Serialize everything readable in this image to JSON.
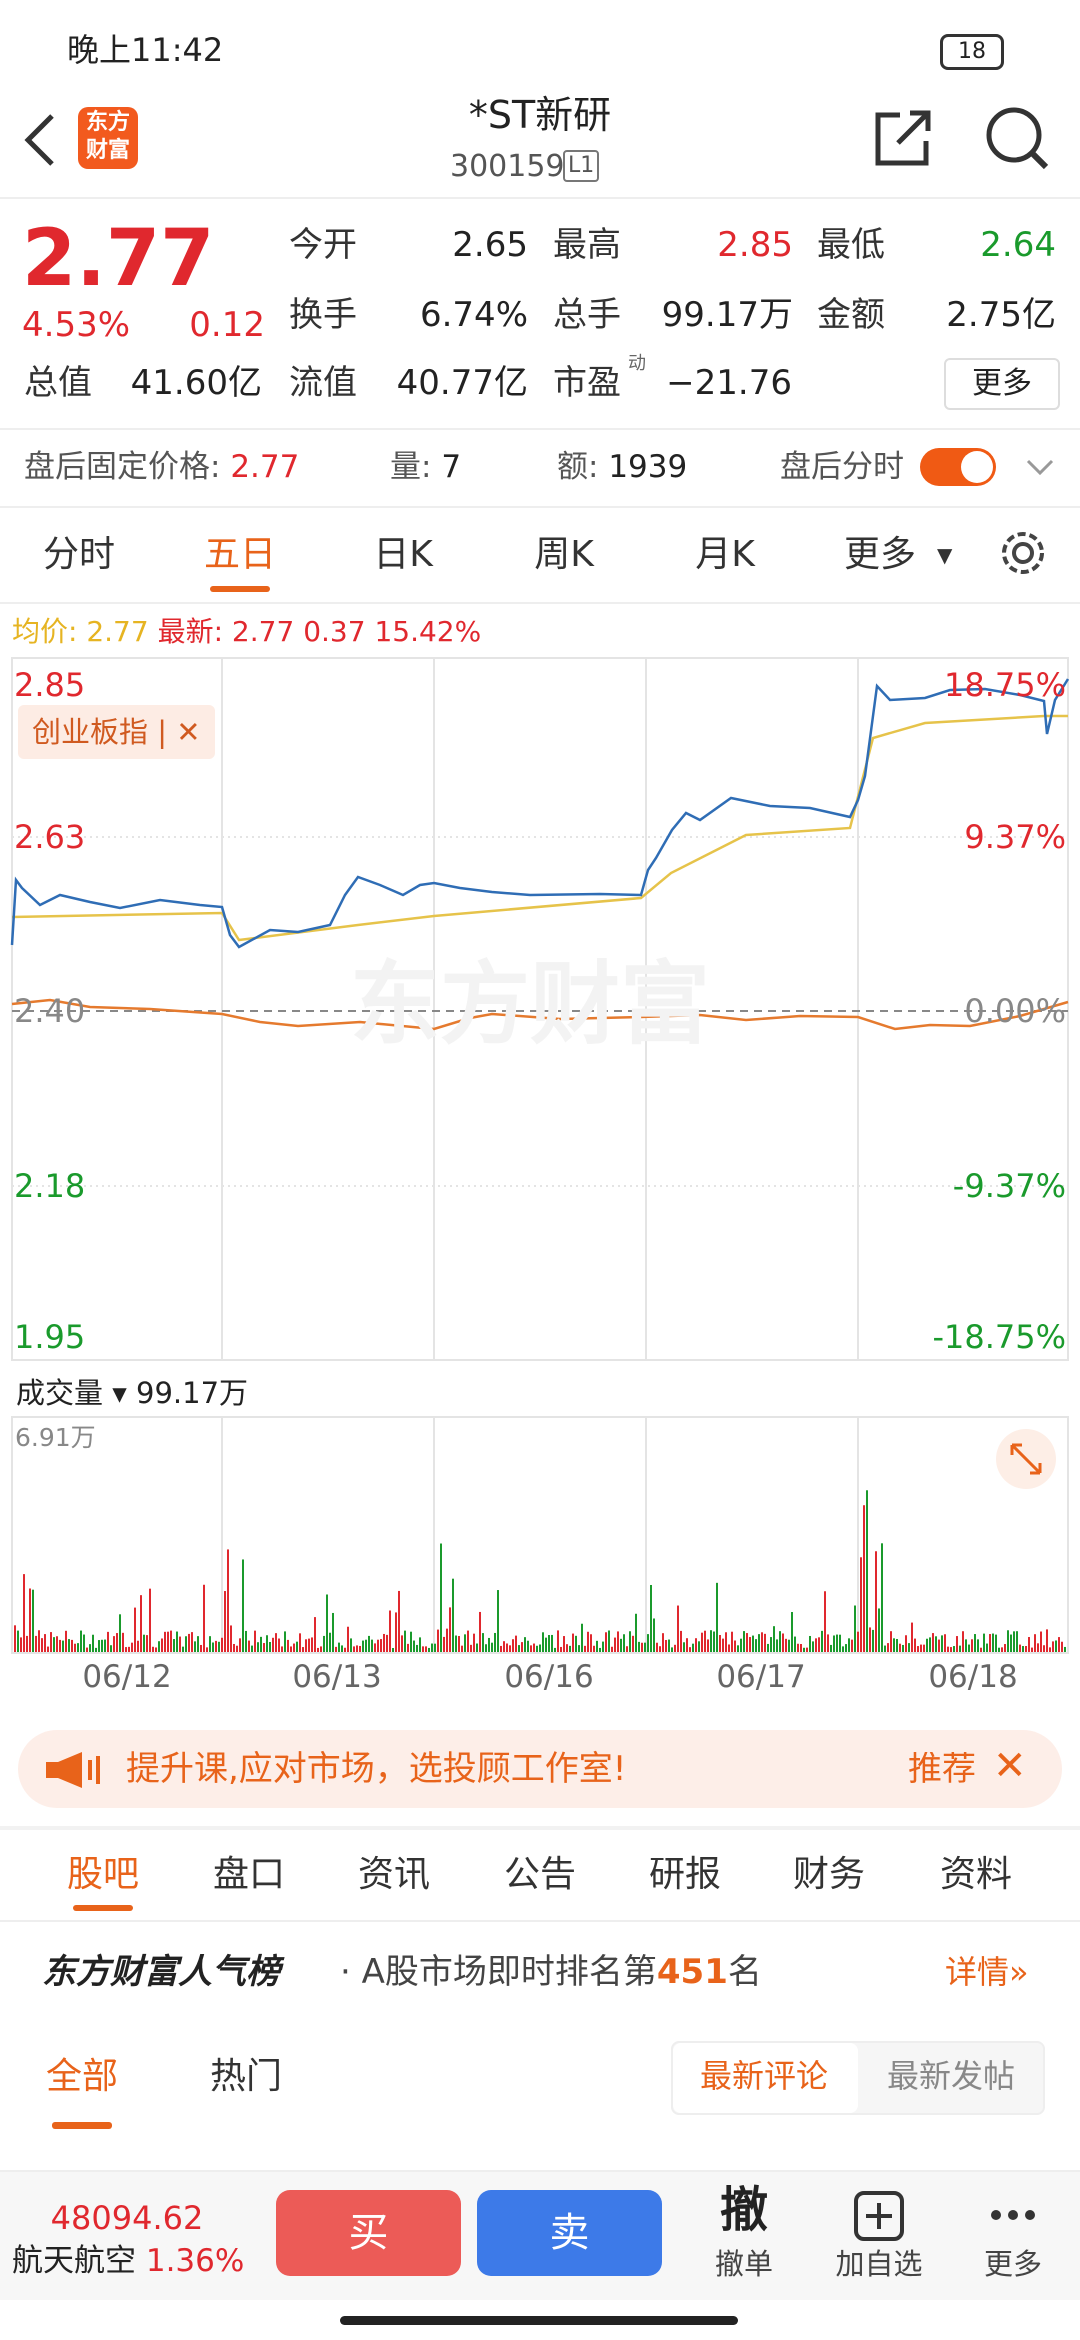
{
  "status_bar": {
    "time": "晚上11:42",
    "battery": "18"
  },
  "header": {
    "logo": "东方财富",
    "title": "*ST新研",
    "code": "300159",
    "level": "L1"
  },
  "quote": {
    "price": "2.77",
    "change_pct": "4.53%",
    "change": "0.12",
    "stats": [
      {
        "label": "今开",
        "value": "2.65"
      },
      {
        "label": "最高",
        "value": "2.85"
      },
      {
        "label": "最低",
        "value": "2.64"
      },
      {
        "label": "换手",
        "value": "6.74%"
      },
      {
        "label": "总手",
        "value": "99.17万"
      },
      {
        "label": "金额",
        "value": "2.75亿"
      },
      {
        "label": "总值",
        "value": "41.60亿"
      },
      {
        "label": "流值",
        "value": "40.77亿"
      },
      {
        "label": "市盈",
        "value": "−21.76"
      }
    ],
    "pe_sup": "动",
    "more": "更多"
  },
  "after_hours": {
    "price_label": "盘后固定价格: ",
    "price": "2.77",
    "volume_label": "量: ",
    "volume": "7",
    "amount_label": "额: ",
    "amount": "1939",
    "toggle_label": "盘后分时"
  },
  "chart_tabs": [
    "分时",
    "五日",
    "日K",
    "周K",
    "月K",
    "更多"
  ],
  "chart": {
    "avg_label": "均价: 2.77",
    "latest_label": "最新: 2.77",
    "latest_change": "0.37",
    "latest_pct": "15.42%",
    "left_labels": [
      "2.85",
      "2.63",
      "2.40",
      "2.18",
      "1.95"
    ],
    "right_labels": [
      "18.75%",
      "9.37%",
      "0.00%",
      "-9.37%",
      "-18.75%"
    ],
    "badge": "创业板指",
    "watermark": "东方财富",
    "volume_label": "成交量",
    "volume_total": "99.17万",
    "volume_max": "6.91万",
    "dates": [
      "06/12",
      "06/13",
      "06/16",
      "06/17",
      "06/18"
    ]
  },
  "banner": {
    "text": "提升课,应对市场，选投顾工作室!",
    "action": "推荐"
  },
  "section_tabs": [
    "股吧",
    "盘口",
    "资讯",
    "公告",
    "研报",
    "财务",
    "资料"
  ],
  "ranking": {
    "title": "东方财富人气榜",
    "text": "· A股市场即时排名第",
    "rank": "451",
    "suffix": "名",
    "detail": "详情»"
  },
  "filter": {
    "tabs": [
      "全部",
      "热门"
    ],
    "sort": [
      "最新评论",
      "最新发帖"
    ]
  },
  "bottom_bar": {
    "index_value": "48094.62",
    "index_name": "航天航空",
    "index_pct": "1.36%",
    "buy": "买",
    "sell": "卖",
    "cancel_icon": "撤",
    "cancel": "撤单",
    "add": "加自选",
    "more": "更多"
  }
}
